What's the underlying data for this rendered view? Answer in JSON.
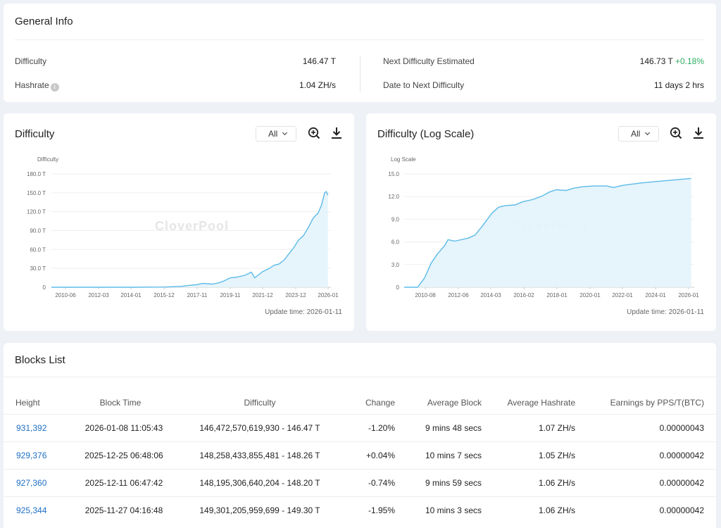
{
  "general": {
    "title": "General Info",
    "difficulty_label": "Difficulty",
    "difficulty_value": "146.47 T",
    "hashrate_label": "Hashrate",
    "hashrate_value": "1.04 ZH/s",
    "next_label": "Next Difficulty Estimated",
    "next_value": "146.73 T",
    "next_change": "+0.18%",
    "date_label": "Date to Next Difficulty",
    "date_value": "11 days 2 hrs"
  },
  "chart1": {
    "title": "Difficulty",
    "range_select": "All",
    "update_time": "Update time: 2026-01-11",
    "watermark": "CloverPool"
  },
  "chart2": {
    "title": "Difficulty (Log Scale)",
    "range_select": "All",
    "update_time": "Update time: 2026-01-11",
    "watermark": "CloverPool"
  },
  "chart_data": [
    {
      "type": "area",
      "title": "Difficulty",
      "ylabel": "Difficulty",
      "ylim": [
        0,
        180
      ],
      "yticks": [
        "0",
        "30.0 T",
        "60.0 T",
        "90.0 T",
        "120.0 T",
        "150.0 T",
        "180.0 T"
      ],
      "xticks": [
        "2010-06",
        "2012-03",
        "2014-01",
        "2015-12",
        "2017-11",
        "2019-11",
        "2021-12",
        "2023-12",
        "2026-01"
      ],
      "xlim": [
        2009.0,
        2026.1
      ],
      "x": [
        2009.0,
        2012.0,
        2014.0,
        2016.0,
        2017.0,
        2017.5,
        2017.9,
        2018.3,
        2018.9,
        2019.3,
        2019.6,
        2020.0,
        2020.4,
        2020.9,
        2021.3,
        2021.5,
        2021.7,
        2022.0,
        2022.4,
        2022.7,
        2023.0,
        2023.3,
        2023.6,
        2023.9,
        2024.2,
        2024.5,
        2024.8,
        2025.1,
        2025.4,
        2025.6,
        2025.8,
        2025.9,
        2026.0
      ],
      "values": [
        0,
        0,
        0,
        0.3,
        1.5,
        3,
        4,
        6,
        5,
        7,
        10,
        15,
        16,
        19,
        24,
        15,
        19,
        25,
        30,
        35,
        37,
        43,
        53,
        63,
        75,
        82,
        95,
        110,
        118,
        130,
        150,
        152,
        146
      ]
    },
    {
      "type": "area",
      "title": "Difficulty (Log Scale)",
      "ylabel": "Log Scale",
      "ylim": [
        0,
        15
      ],
      "yticks": [
        "0",
        "3.0",
        "6.0",
        "9.0",
        "12.0",
        "15.0"
      ],
      "xticks": [
        "2010-08",
        "2012-06",
        "2014-03",
        "2016-02",
        "2018-01",
        "2020-01",
        "2022-01",
        "2024-01",
        "2026-01"
      ],
      "xlim": [
        2009.0,
        2026.1
      ],
      "x": [
        2009.0,
        2009.8,
        2010.2,
        2010.6,
        2011.0,
        2011.4,
        2011.6,
        2012.0,
        2012.8,
        2013.2,
        2013.6,
        2014.2,
        2014.6,
        2015.0,
        2015.6,
        2016.0,
        2016.6,
        2017.2,
        2017.6,
        2018.0,
        2018.6,
        2019.0,
        2019.6,
        2020.2,
        2021.0,
        2021.4,
        2022.0,
        2023.0,
        2024.0,
        2025.0,
        2026.0
      ],
      "values": [
        0,
        0,
        1.2,
        3.2,
        4.5,
        5.5,
        6.3,
        6.1,
        6.5,
        6.9,
        8.0,
        9.8,
        10.6,
        10.8,
        10.9,
        11.3,
        11.6,
        12.1,
        12.6,
        12.9,
        12.8,
        13.1,
        13.3,
        13.4,
        13.4,
        13.2,
        13.5,
        13.8,
        14.0,
        14.2,
        14.4
      ]
    }
  ],
  "blocks": {
    "title": "Blocks List",
    "headers": {
      "height": "Height",
      "time": "Block Time",
      "difficulty": "Difficulty",
      "change": "Change",
      "avg_block": "Average Block",
      "avg_hashrate": "Average Hashrate",
      "earnings": "Earnings by PPS/T(BTC)"
    },
    "rows": [
      {
        "height": "931,392",
        "time": "2026-01-08 11:05:43",
        "difficulty": "146,472,570,619,930 - 146.47 T",
        "change": "-1.20%",
        "avg_block": "9 mins 48 secs",
        "avg_hashrate": "1.07 ZH/s",
        "earnings": "0.00000043"
      },
      {
        "height": "929,376",
        "time": "2025-12-25 06:48:06",
        "difficulty": "148,258,433,855,481 - 148.26 T",
        "change": "+0.04%",
        "avg_block": "10 mins 7 secs",
        "avg_hashrate": "1.05 ZH/s",
        "earnings": "0.00000042"
      },
      {
        "height": "927,360",
        "time": "2025-12-11 06:47:42",
        "difficulty": "148,195,306,640,204 - 148.20 T",
        "change": "-0.74%",
        "avg_block": "9 mins 59 secs",
        "avg_hashrate": "1.06 ZH/s",
        "earnings": "0.00000042"
      },
      {
        "height": "925,344",
        "time": "2025-11-27 04:16:48",
        "difficulty": "149,301,205,959,699 - 149.30 T",
        "change": "-1.95%",
        "avg_block": "10 mins 3 secs",
        "avg_hashrate": "1.06 ZH/s",
        "earnings": "0.00000042"
      }
    ]
  },
  "icons": [
    "info-icon",
    "zoom-in-icon",
    "download-icon",
    "chevron-down-icon"
  ],
  "colors": {
    "accent": "#1f6fc5",
    "positive": "#2eae61",
    "negative": "#e84a4a",
    "line": "#5bbbe8",
    "area": "#e3f3fb"
  }
}
